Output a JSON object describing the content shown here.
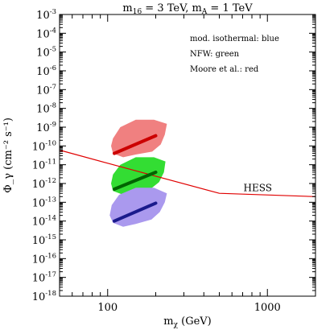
{
  "chart_data": {
    "type": "line",
    "title": {
      "prefix": "m",
      "sub": "16",
      "mid": " = 3 TeV, m",
      "sub2": "A",
      "suffix": " = 1 TeV"
    },
    "xlabel": {
      "main": "m",
      "sub": "χ",
      "rest": " (GeV)"
    },
    "ylabel": "Φ_γ (cm⁻² s⁻¹)",
    "xscale": "log",
    "yscale": "log",
    "xlim": [
      50,
      2000
    ],
    "ylim": [
      1e-18,
      0.001
    ],
    "x_ticks": [
      {
        "value": 100,
        "label": "100"
      },
      {
        "value": 1000,
        "label": "1000"
      }
    ],
    "y_tick_exponents": [
      -18,
      -17,
      -16,
      -15,
      -14,
      -13,
      -12,
      -11,
      -10,
      -9,
      -8,
      -7,
      -6,
      -5,
      -4,
      -3
    ],
    "y_tick_base": "10",
    "legend": [
      {
        "label": "mod. isothermal: blue"
      },
      {
        "label": "NFW: green"
      },
      {
        "label": "Moore et al.: red"
      }
    ],
    "series": [
      {
        "name": "HESS",
        "color": "#e00000",
        "x": [
          50,
          100,
          500,
          2000
        ],
        "y": [
          6e-11,
          1.2e-11,
          3e-13,
          2e-13
        ]
      },
      {
        "name": "Moore et al.",
        "color": "#cc0000",
        "band_color": "#f08080",
        "x": [
          110,
          200
        ],
        "y": [
          4e-11,
          3.5e-10
        ],
        "band": {
          "x": [
            105,
            108,
            120,
            150,
            195,
            235,
            228,
            215,
            190,
            150,
            125,
            108
          ],
          "y": [
            1e-10,
            2.5e-10,
            1e-09,
            2.5e-09,
            2.5e-09,
            1.5e-09,
            4e-10,
            1.2e-10,
            5e-11,
            3.5e-11,
            2.5e-11,
            4e-11
          ]
        }
      },
      {
        "name": "NFW",
        "color": "#006400",
        "band_color": "#33dd33",
        "x": [
          110,
          200
        ],
        "y": [
          5e-13,
          4e-12
        ],
        "band": {
          "x": [
            105,
            108,
            120,
            150,
            195,
            230,
            225,
            210,
            185,
            150,
            125,
            108
          ],
          "y": [
            1e-12,
            3e-12,
            1e-11,
            2.5e-11,
            2.5e-11,
            1.5e-11,
            4e-12,
            1.2e-12,
            5e-13,
            3.5e-13,
            2.5e-13,
            4e-13
          ]
        }
      },
      {
        "name": "mod. isothermal",
        "color": "#1a1a8c",
        "band_color": "#aa99ee",
        "x": [
          110,
          200
        ],
        "y": [
          1e-14,
          9e-14
        ],
        "band": {
          "x": [
            103,
            106,
            118,
            150,
            195,
            235,
            228,
            212,
            188,
            150,
            125,
            108
          ],
          "y": [
            2e-14,
            7e-14,
            2.5e-13,
            6e-13,
            6e-13,
            3e-13,
            1e-13,
            3e-14,
            1.2e-14,
            7e-15,
            5e-15,
            8e-15
          ]
        }
      }
    ],
    "annotations": [
      {
        "text": "HESS",
        "x": 870,
        "y": 4e-13
      }
    ],
    "grid": false
  }
}
